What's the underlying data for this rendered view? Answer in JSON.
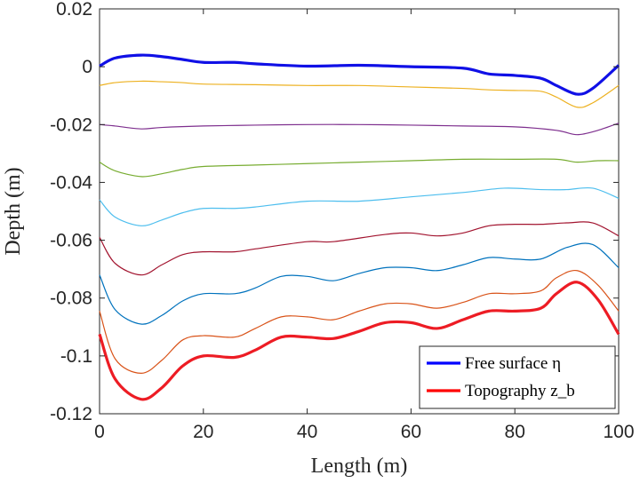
{
  "chart_data": {
    "type": "line",
    "title": "",
    "xlabel": "Length (m)",
    "ylabel": "Depth (m)",
    "xlim": [
      0,
      100
    ],
    "ylim": [
      -0.12,
      0.02
    ],
    "x_ticks": [
      0,
      20,
      40,
      60,
      80,
      100
    ],
    "x_tick_labels": [
      "0",
      "20",
      "40",
      "60",
      "80",
      "100"
    ],
    "y_ticks": [
      0.02,
      0,
      -0.02,
      -0.04,
      -0.06,
      -0.08,
      -0.1,
      -0.12
    ],
    "y_tick_labels": [
      "0.02",
      "0",
      "-0.02",
      "-0.04",
      "-0.06",
      "-0.08",
      "-0.1",
      "-0.12"
    ],
    "grid": false,
    "legend_position": "bottom-right",
    "legend": [
      {
        "label": "Free surface η",
        "color": "#0000ff"
      },
      {
        "label": "Topography z_b",
        "color": "#ff0000"
      }
    ],
    "series": [
      {
        "name": "Free surface η",
        "color": "#1010e6",
        "width": 3.2,
        "x": [
          0,
          3,
          8,
          12,
          16,
          20,
          26,
          30,
          40,
          50,
          60,
          70,
          75,
          80,
          85,
          88,
          92,
          95,
          100
        ],
        "y": [
          0.0002,
          0.003,
          0.004,
          0.0035,
          0.0025,
          0.0015,
          0.0015,
          0.001,
          0.0002,
          0.0005,
          0.0,
          -0.0005,
          -0.0025,
          -0.003,
          -0.004,
          -0.0065,
          -0.0095,
          -0.0075,
          0.0005
        ]
      },
      {
        "color": "#edb120",
        "width": 1.2,
        "x": [
          0,
          3,
          8,
          12,
          16,
          20,
          30,
          40,
          50,
          60,
          70,
          75,
          80,
          85,
          88,
          92,
          95,
          100
        ],
        "y": [
          -0.0065,
          -0.0055,
          -0.005,
          -0.0052,
          -0.0055,
          -0.006,
          -0.0062,
          -0.0065,
          -0.0065,
          -0.007,
          -0.0075,
          -0.008,
          -0.0082,
          -0.0085,
          -0.0105,
          -0.014,
          -0.0125,
          -0.0065
        ]
      },
      {
        "color": "#7e2f8e",
        "width": 1.2,
        "x": [
          0,
          3,
          8,
          12,
          20,
          30,
          40,
          50,
          60,
          70,
          80,
          88,
          92,
          96,
          100
        ],
        "y": [
          -0.02,
          -0.0205,
          -0.0215,
          -0.021,
          -0.0205,
          -0.0202,
          -0.02,
          -0.02,
          -0.0202,
          -0.0205,
          -0.0208,
          -0.022,
          -0.0235,
          -0.022,
          -0.0195
        ]
      },
      {
        "color": "#77ac30",
        "width": 1.2,
        "x": [
          0,
          3,
          8,
          12,
          16,
          20,
          30,
          40,
          50,
          60,
          70,
          80,
          88,
          92,
          96,
          100
        ],
        "y": [
          -0.033,
          -0.036,
          -0.038,
          -0.037,
          -0.0355,
          -0.0345,
          -0.034,
          -0.0335,
          -0.033,
          -0.0325,
          -0.032,
          -0.032,
          -0.032,
          -0.033,
          -0.0325,
          -0.0325
        ]
      },
      {
        "color": "#4dbeee",
        "width": 1.2,
        "x": [
          0,
          3,
          8,
          12,
          16,
          20,
          26,
          30,
          40,
          50,
          60,
          70,
          78,
          85,
          90,
          95,
          100
        ],
        "y": [
          -0.046,
          -0.052,
          -0.055,
          -0.053,
          -0.0505,
          -0.049,
          -0.049,
          -0.0485,
          -0.0465,
          -0.0465,
          -0.045,
          -0.0435,
          -0.042,
          -0.0425,
          -0.0425,
          -0.042,
          -0.0455
        ]
      },
      {
        "color": "#a2142f",
        "width": 1.2,
        "x": [
          0,
          3,
          8,
          12,
          16,
          20,
          26,
          30,
          40,
          45,
          55,
          60,
          65,
          70,
          75,
          80,
          85,
          90,
          95,
          100
        ],
        "y": [
          -0.059,
          -0.068,
          -0.072,
          -0.0685,
          -0.065,
          -0.064,
          -0.064,
          -0.063,
          -0.0605,
          -0.0605,
          -0.058,
          -0.0575,
          -0.0585,
          -0.0575,
          -0.055,
          -0.0545,
          -0.0545,
          -0.054,
          -0.054,
          -0.0585
        ]
      },
      {
        "color": "#0072bd",
        "width": 1.2,
        "x": [
          0,
          3,
          8,
          12,
          16,
          20,
          26,
          30,
          35,
          40,
          45,
          50,
          55,
          60,
          65,
          70,
          75,
          80,
          85,
          90,
          95,
          100
        ],
        "y": [
          -0.072,
          -0.084,
          -0.089,
          -0.086,
          -0.081,
          -0.0785,
          -0.0785,
          -0.0765,
          -0.0725,
          -0.0725,
          -0.074,
          -0.0715,
          -0.0695,
          -0.0695,
          -0.0705,
          -0.0685,
          -0.066,
          -0.0665,
          -0.0665,
          -0.0625,
          -0.0615,
          -0.0695
        ]
      },
      {
        "color": "#d95319",
        "width": 1.2,
        "x": [
          0,
          3,
          8,
          12,
          16,
          20,
          26,
          30,
          35,
          40,
          45,
          50,
          55,
          60,
          65,
          70,
          75,
          80,
          85,
          88,
          92,
          96,
          100
        ],
        "y": [
          -0.0845,
          -0.101,
          -0.106,
          -0.1015,
          -0.0945,
          -0.093,
          -0.0935,
          -0.0905,
          -0.0865,
          -0.0865,
          -0.0875,
          -0.0845,
          -0.082,
          -0.082,
          -0.0835,
          -0.0815,
          -0.0785,
          -0.0785,
          -0.0775,
          -0.073,
          -0.0705,
          -0.0755,
          -0.0845
        ]
      },
      {
        "name": "Topography z_b",
        "color": "#ed1c24",
        "width": 3.2,
        "x": [
          0,
          3,
          8,
          12,
          16,
          20,
          26,
          30,
          35,
          40,
          45,
          50,
          55,
          60,
          65,
          70,
          75,
          80,
          85,
          88,
          92,
          96,
          100
        ],
        "y": [
          -0.0925,
          -0.108,
          -0.115,
          -0.111,
          -0.1035,
          -0.1,
          -0.1005,
          -0.098,
          -0.0935,
          -0.0935,
          -0.094,
          -0.0915,
          -0.0885,
          -0.0885,
          -0.0905,
          -0.0875,
          -0.0845,
          -0.0845,
          -0.0835,
          -0.0785,
          -0.0745,
          -0.0805,
          -0.0925
        ]
      }
    ]
  }
}
